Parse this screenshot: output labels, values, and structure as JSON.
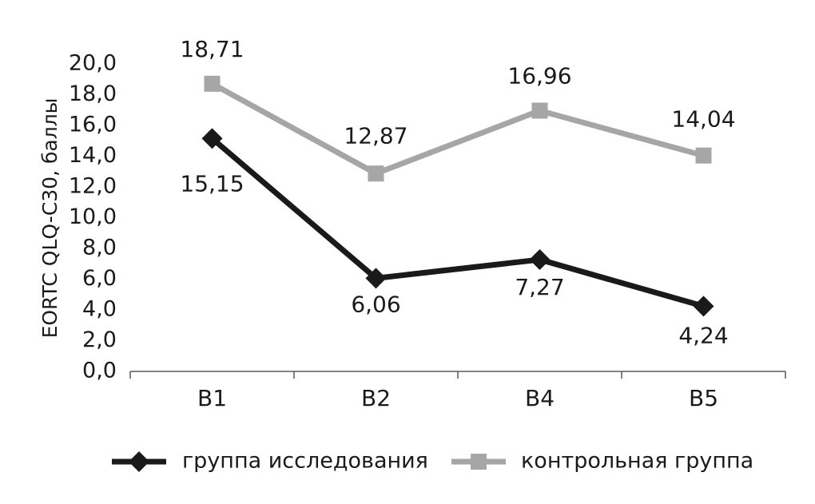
{
  "chart_data": {
    "type": "line",
    "title": "",
    "xlabel": "",
    "ylabel": "EORTC QLQ-C30, баллы",
    "categories": [
      "B1",
      "B2",
      "B4",
      "B5"
    ],
    "ylim": [
      0,
      20
    ],
    "yticks": [
      "0,0",
      "2,0",
      "4,0",
      "6,0",
      "8,0",
      "10,0",
      "12,0",
      "14,0",
      "16,0",
      "18,0",
      "20,0"
    ],
    "grid": false,
    "legend_position": "bottom",
    "series": [
      {
        "name": "группа исследования",
        "values": [
          15.15,
          6.06,
          7.27,
          4.24
        ],
        "labels": [
          "15,15",
          "6,06",
          "7,27",
          "4,24"
        ],
        "color": "#1a1a1a",
        "marker": "diamond"
      },
      {
        "name": "контрольная группа",
        "values": [
          18.71,
          12.87,
          16.96,
          14.04
        ],
        "labels": [
          "18,71",
          "12,87",
          "16,96",
          "14,04"
        ],
        "color": "#a6a6a6",
        "marker": "square"
      }
    ]
  }
}
